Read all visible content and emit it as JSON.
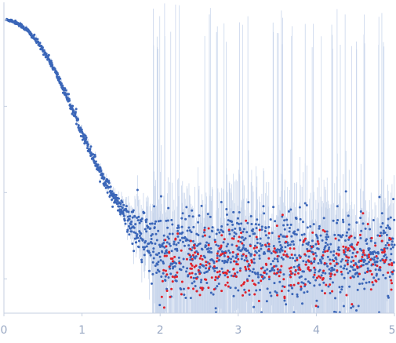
{
  "chart_data": {
    "type": "scatter",
    "title": "",
    "xlabel": "",
    "ylabel": "",
    "xlim": [
      0,
      5
    ],
    "y_scale": "log",
    "ylim": [
      0.0004,
      1.6
    ],
    "grid": false,
    "legend": "none",
    "x_ticks": [
      "0",
      "1",
      "2",
      "3",
      "4",
      "5"
    ],
    "y_ticks_unlabeled": [
      1,
      0.1,
      0.01,
      0.001
    ],
    "colors": {
      "points": "#3b66b8",
      "negative_points": "#e0202a",
      "error_bars": "#c9d6ec",
      "axis": "#c5cfe0",
      "tick_labels": "#9aa9c4"
    },
    "series": [
      {
        "kind": "scattering profile",
        "x": [
          0.05,
          0.1,
          0.2,
          0.3,
          0.4,
          0.5,
          0.6,
          0.7,
          0.8,
          0.9,
          1.0,
          1.1,
          1.2,
          1.3,
          1.4,
          1.5,
          1.6,
          1.7,
          1.8,
          1.9,
          2.0,
          2.5,
          3.0,
          3.5,
          4.0,
          4.5,
          5.0
        ],
        "y": [
          1.0,
          0.98,
          0.89,
          0.76,
          0.6,
          0.45,
          0.32,
          0.21,
          0.133,
          0.082,
          0.05,
          0.031,
          0.02,
          0.0135,
          0.009,
          0.0065,
          0.0045,
          0.0035,
          0.0029,
          0.0025,
          0.0022,
          0.002,
          0.0019,
          0.0019,
          0.0018,
          0.0018,
          0.0018
        ]
      },
      {
        "kind": "negative-intensity points (absolute value)",
        "x": [
          2.0,
          2.5,
          3.0,
          3.5,
          4.0,
          4.5,
          5.0
        ],
        "y": [
          0.0012,
          0.0015,
          0.0015,
          0.0016,
          0.0016,
          0.0016,
          0.0016
        ]
      }
    ]
  }
}
